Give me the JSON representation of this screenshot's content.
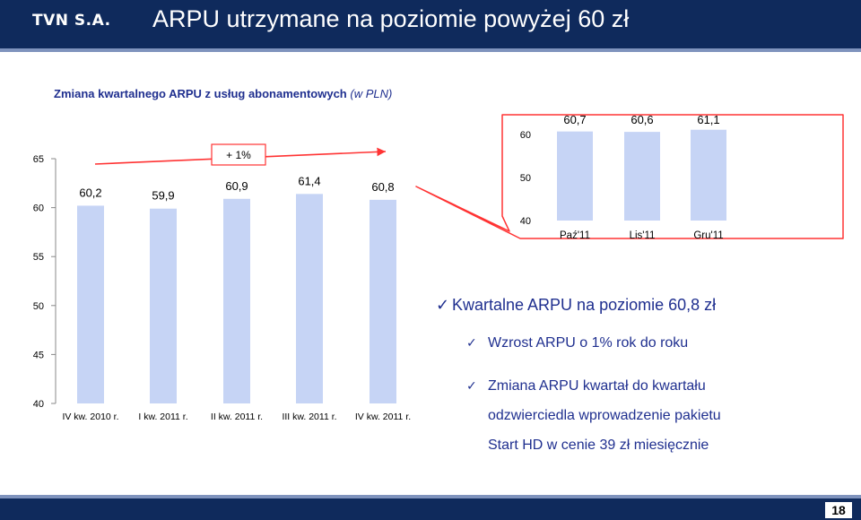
{
  "header": {
    "logo": "TVN S.A.",
    "title": "ARPU utrzymane na poziomie powyżej 60 zł"
  },
  "subtitle": {
    "main": "Zmiana kwartalnego ARPU z usług abonamentowych",
    "unit": "(w PLN)"
  },
  "chart_data": [
    {
      "type": "bar",
      "categories": [
        "IV kw. 2010 r.",
        "I kw. 2011 r.",
        "II kw. 2011 r.",
        "III kw. 2011 r.",
        "IV kw. 2011 r."
      ],
      "values": [
        60.2,
        59.9,
        60.9,
        61.4,
        60.8
      ],
      "data_labels": [
        "60,2",
        "59,9",
        "60,9",
        "61,4",
        "60,8"
      ],
      "ylim": [
        40,
        65
      ],
      "yticks": [
        40,
        45,
        50,
        55,
        60,
        65
      ],
      "ytick_labels": [
        "40",
        "45",
        "50",
        "55",
        "60",
        "65"
      ],
      "annotation": "+ 1%",
      "bar_color": "#c6d4f5"
    },
    {
      "type": "bar",
      "categories": [
        "Paź'11",
        "Lis'11",
        "Gru'11"
      ],
      "values": [
        60.7,
        60.6,
        61.1
      ],
      "data_labels": [
        "60,7",
        "60,6",
        "61,1"
      ],
      "ylim": [
        40,
        60
      ],
      "yticks": [
        40,
        50,
        60
      ],
      "ytick_labels": [
        "40",
        "50",
        "60"
      ],
      "bar_color": "#c6d4f5"
    }
  ],
  "bullets": {
    "main": "Kwartalne ARPU na poziomie 60,8 zł",
    "sub1": "Wzrost ARPU o 1% rok do roku",
    "sub2_line1": "Zmiana ARPU kwartał do kwartału",
    "sub2_line2": "odzwierciedla wprowadzenie pakietu",
    "sub2_line3": "Start HD w cenie 39 zł miesięcznie"
  },
  "footer": {
    "page": "18"
  },
  "colors": {
    "navy": "#0f2a5c",
    "accent": "#1f2f8f",
    "bar": "#c6d4f5",
    "arrow": "#ff3333"
  }
}
